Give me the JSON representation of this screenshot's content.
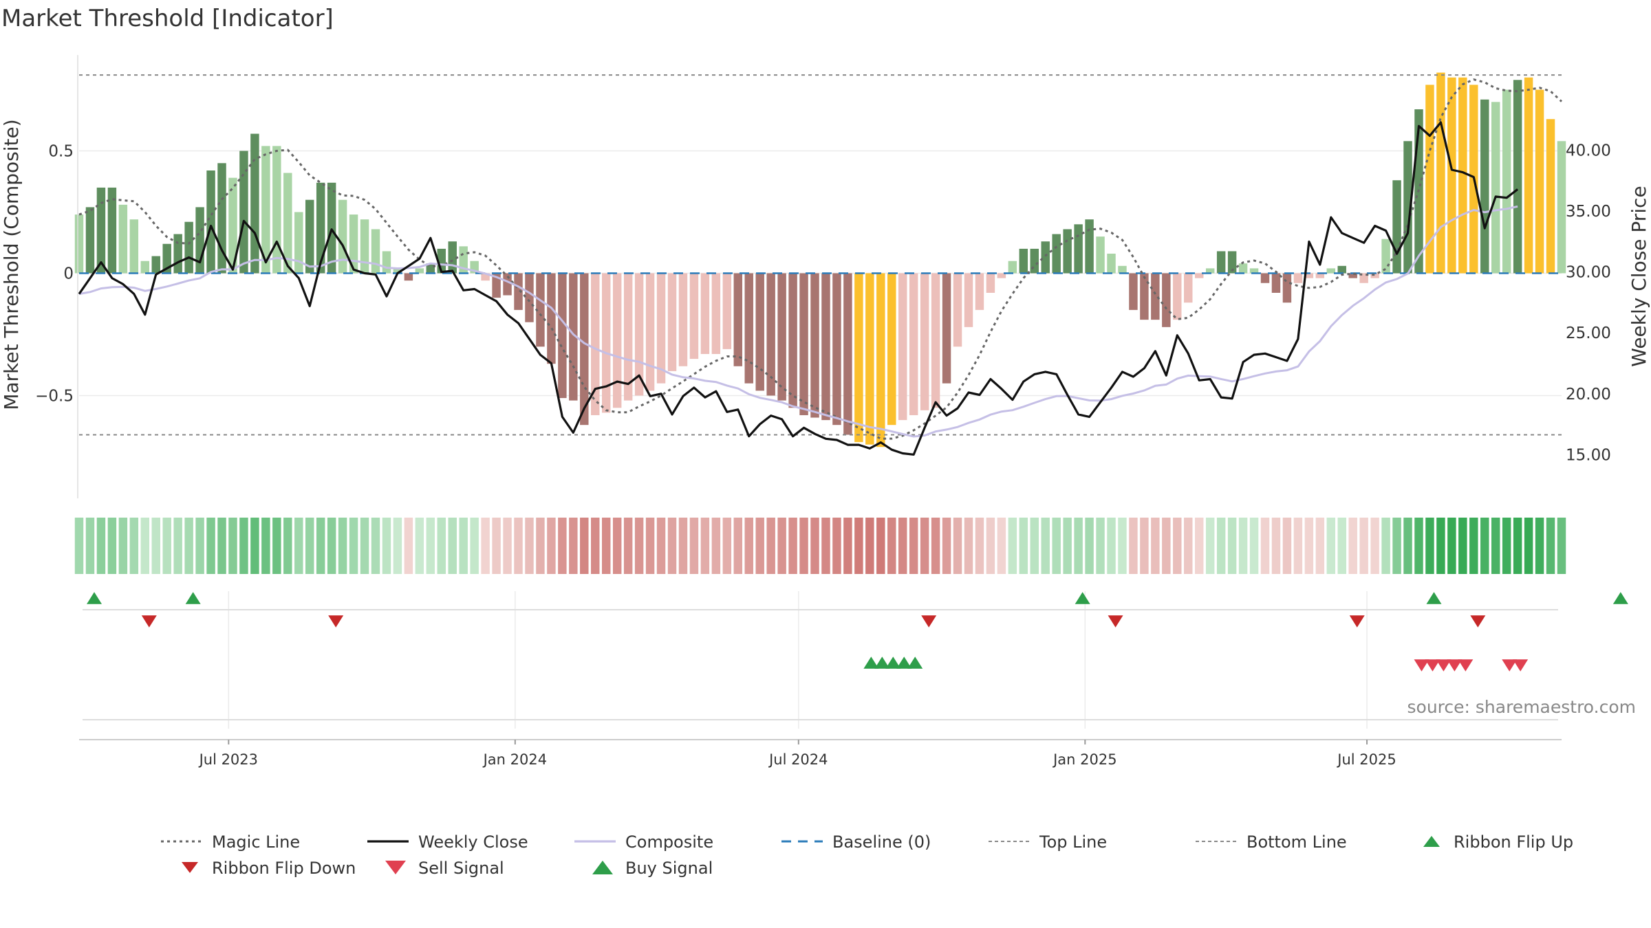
{
  "chart_data": {
    "type": "bar",
    "title": "Market Threshold [Indicator]",
    "ylabel_left": "Market Threshold (Composite)",
    "ylabel_right": "Weekly Close Price",
    "source": "source: sharemaestro.com",
    "left_axis": {
      "ylim": [
        -0.92,
        0.92
      ],
      "ticks": [
        0.5,
        0,
        -0.5
      ],
      "tick_labels": [
        "0.5",
        "0",
        "−0.5"
      ]
    },
    "right_axis": {
      "ylim": [
        11.4,
        48.4
      ],
      "ticks": [
        15,
        20,
        25,
        30,
        35,
        40
      ],
      "tick_labels": [
        "15.00",
        "20.00",
        "25.00",
        "30.00",
        "35.00",
        "40.00"
      ]
    },
    "x_axis": {
      "start": "2023-03-27",
      "end": "2025-11-03",
      "ticks": [
        "2023-07-01",
        "2024-01-01",
        "2024-07-01",
        "2025-01-01",
        "2025-07-01"
      ],
      "tick_labels": [
        "Jul 2023",
        "Jan 2024",
        "Jul 2024",
        "Jan 2025",
        "Jul 2025"
      ]
    },
    "top_line": 0.81,
    "bottom_line": -0.66,
    "baseline": 0,
    "series": [
      {
        "name": "Composite Bars",
        "values": [
          0.24,
          0.27,
          0.35,
          0.35,
          0.28,
          0.22,
          0.05,
          0.07,
          0.12,
          0.16,
          0.21,
          0.27,
          0.42,
          0.45,
          0.39,
          0.5,
          0.57,
          0.52,
          0.52,
          0.41,
          0.25,
          0.3,
          0.37,
          0.37,
          0.3,
          0.24,
          0.22,
          0.18,
          0.09,
          0.02,
          -0.03,
          0.02,
          0.04,
          0.1,
          0.13,
          0.11,
          0.05,
          -0.03,
          -0.1,
          -0.09,
          -0.15,
          -0.2,
          -0.3,
          -0.37,
          -0.51,
          -0.52,
          -0.62,
          -0.58,
          -0.57,
          -0.55,
          -0.52,
          -0.5,
          -0.48,
          -0.45,
          -0.4,
          -0.38,
          -0.35,
          -0.33,
          -0.33,
          -0.31,
          -0.38,
          -0.45,
          -0.48,
          -0.5,
          -0.52,
          -0.55,
          -0.58,
          -0.59,
          -0.6,
          -0.62,
          -0.66,
          -0.69,
          -0.7,
          -0.71,
          -0.62,
          -0.6,
          -0.58,
          -0.56,
          -0.55,
          -0.45,
          -0.3,
          -0.22,
          -0.15,
          -0.08,
          -0.02,
          0.05,
          0.1,
          0.1,
          0.13,
          0.16,
          0.18,
          0.2,
          0.22,
          0.15,
          0.08,
          0.03,
          -0.15,
          -0.19,
          -0.19,
          -0.22,
          -0.19,
          -0.12,
          -0.02,
          0.02,
          0.09,
          0.09,
          0.04,
          0.02,
          -0.04,
          -0.08,
          -0.12,
          -0.04,
          -0.02,
          -0.02,
          0.02,
          0.03,
          -0.02,
          -0.04,
          -0.02,
          0.14,
          0.38,
          0.54,
          0.67,
          0.77,
          0.82,
          0.8,
          0.8,
          0.77,
          0.71,
          0.7,
          0.75,
          0.79,
          0.8,
          0.75,
          0.63,
          0.54
        ],
        "states": [
          "ls",
          "ds",
          "ds",
          "ds",
          "ls",
          "ls",
          "ls",
          "ds",
          "ds",
          "ds",
          "ds",
          "ds",
          "ds",
          "ds",
          "ls",
          "ds",
          "ds",
          "ls",
          "ls",
          "ls",
          "ls",
          "ds",
          "ds",
          "ds",
          "ls",
          "ls",
          "ls",
          "ls",
          "ls",
          "ls",
          "dr",
          "ls",
          "ds",
          "ds",
          "ds",
          "ls",
          "ls",
          "lr",
          "dr",
          "dr",
          "dr",
          "dr",
          "dr",
          "dr",
          "dr",
          "dr",
          "dr",
          "lr",
          "lr",
          "lr",
          "lr",
          "lr",
          "lr",
          "lr",
          "lr",
          "lr",
          "lr",
          "lr",
          "lr",
          "lr",
          "dr",
          "dr",
          "dr",
          "dr",
          "dr",
          "dr",
          "dr",
          "dr",
          "dr",
          "dr",
          "dr",
          "y",
          "y",
          "y",
          "y",
          "lr",
          "lr",
          "lr",
          "lr",
          "dr",
          "lr",
          "lr",
          "lr",
          "lr",
          "lr",
          "ls",
          "ds",
          "ds",
          "ds",
          "ds",
          "ds",
          "ds",
          "ds",
          "ls",
          "ls",
          "ls",
          "dr",
          "dr",
          "dr",
          "dr",
          "lr",
          "lr",
          "lr",
          "ls",
          "ds",
          "ds",
          "ls",
          "ls",
          "dr",
          "dr",
          "dr",
          "lr",
          "lr",
          "lr",
          "ls",
          "ds",
          "dr",
          "lr",
          "lr",
          "ls",
          "ds",
          "ds",
          "ds",
          "y",
          "y",
          "y",
          "y",
          "y",
          "ds",
          "ls",
          "ls",
          "ds",
          "y",
          "y",
          "y",
          "ls",
          "ls",
          "ls"
        ]
      },
      {
        "name": "Weekly Close",
        "values": [
          28.2,
          29.5,
          30.8,
          29.5,
          29.0,
          28.2,
          26.5,
          29.8,
          30.3,
          30.8,
          31.2,
          30.8,
          33.8,
          31.8,
          30.2,
          34.2,
          33.2,
          30.8,
          32.5,
          30.5,
          29.5,
          27.2,
          30.8,
          33.5,
          32.2,
          30.2,
          29.9,
          29.8,
          28.0,
          29.9,
          30.5,
          31.1,
          32.8,
          30.0,
          30.1,
          28.5,
          28.6,
          28.1,
          27.6,
          26.5,
          25.8,
          24.5,
          23.2,
          22.5,
          18.1,
          16.8,
          18.8,
          20.4,
          20.6,
          21.0,
          20.8,
          21.5,
          19.8,
          20.0,
          18.3,
          19.8,
          20.5,
          19.7,
          20.2,
          18.5,
          18.7,
          16.5,
          17.5,
          18.2,
          17.9,
          16.5,
          17.2,
          16.7,
          16.3,
          16.2,
          15.8,
          15.8,
          15.5,
          16.0,
          15.4,
          15.1,
          15.0,
          17.2,
          19.3,
          18.2,
          18.8,
          20.1,
          19.9,
          21.2,
          20.4,
          19.5,
          21.0,
          21.6,
          21.8,
          21.6,
          19.9,
          18.3,
          18.1,
          19.3,
          20.5,
          21.8,
          21.4,
          22.1,
          23.5,
          21.5,
          24.8,
          23.3,
          21.1,
          21.2,
          19.7,
          19.6,
          22.6,
          23.2,
          23.3,
          23.0,
          22.7,
          24.5,
          32.5,
          30.6,
          34.5,
          33.2,
          32.8,
          32.4,
          33.8,
          33.4,
          31.5,
          33.2,
          42.0,
          41.2,
          42.3,
          38.4,
          38.2,
          37.8,
          33.6,
          36.2,
          36.1,
          36.8
        ],
        "close_override_note": ""
      }
    ],
    "ribbon_flip_up_weeks": [
      0,
      9,
      90,
      122,
      139
    ],
    "ribbon_flip_down_weeks": [
      5,
      22,
      76,
      115,
      126,
      93
    ],
    "buy_signal_weeks": [
      71,
      72,
      73,
      74,
      75
    ],
    "sell_signal_weeks": [
      121,
      122,
      123,
      124,
      125,
      129,
      130
    ],
    "legend": [
      {
        "key": "magic",
        "label": "Magic Line"
      },
      {
        "key": "close",
        "label": "Weekly Close"
      },
      {
        "key": "composite",
        "label": "Composite"
      },
      {
        "key": "baseline",
        "label": "Baseline (0)"
      },
      {
        "key": "top",
        "label": "Top Line"
      },
      {
        "key": "bottom",
        "label": "Bottom Line"
      },
      {
        "key": "flipup",
        "label": "Ribbon Flip Up"
      },
      {
        "key": "flipdown",
        "label": "Ribbon Flip Down"
      },
      {
        "key": "sell",
        "label": "Sell Signal"
      },
      {
        "key": "buy",
        "label": "Buy Signal"
      }
    ],
    "colors": {
      "dark_green": "#5e8e5e",
      "light_green": "#a9d4a5",
      "dark_red": "#a87570",
      "light_red": "#ecbfba",
      "yellow": "#fbc02d",
      "close_line": "#111111",
      "composite_line": "#c5bfe6",
      "magic_line": "#666666",
      "baseline": "#2b7bb9",
      "threshold": "#888888",
      "flip_up": "#2e9e4a",
      "flip_down": "#c62828",
      "sell": "#e04050",
      "buy": "#2e9e4a"
    },
    "grid": true
  }
}
